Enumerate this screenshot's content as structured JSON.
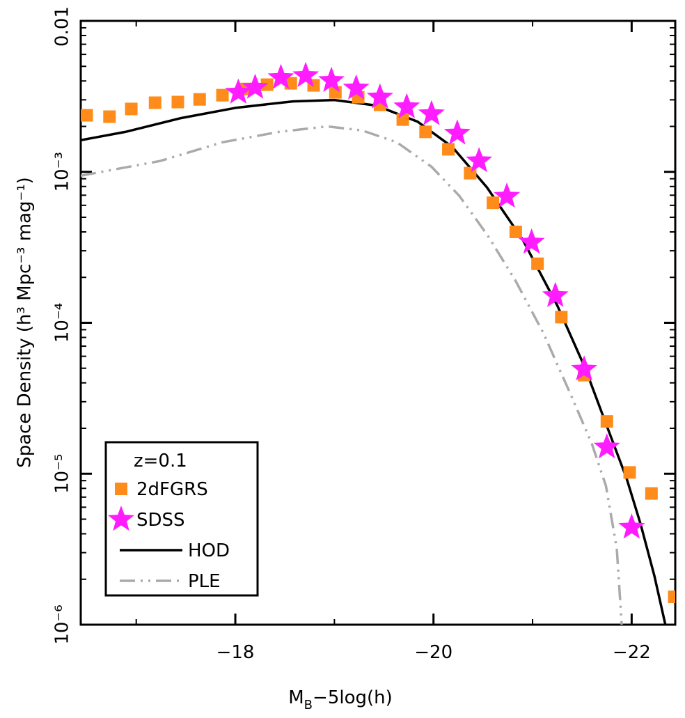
{
  "chart_data": {
    "type": "scatter-line",
    "xlabel": {
      "main": "M",
      "sub": "B",
      "rest": "−5log(h)"
    },
    "ylabel": "Space Density (h³ Mpc⁻³ mag⁻¹)",
    "xlim": [
      -16.44,
      -22.44
    ],
    "xticks": [
      {
        "value": -18,
        "label": "−18"
      },
      {
        "value": -20,
        "label": "−20"
      },
      {
        "value": -22,
        "label": "−22"
      }
    ],
    "xminor": [
      -17,
      -19,
      -21
    ],
    "ylim": [
      1e-06,
      0.01
    ],
    "log_y": true,
    "minor_ticks": true,
    "yticks": [
      {
        "value": 1e-06,
        "label": "10⁻⁶"
      },
      {
        "value": 1e-05,
        "label": "10⁻⁵"
      },
      {
        "value": 0.0001,
        "label": "10⁻⁴"
      },
      {
        "value": 0.001,
        "label": "10⁻³"
      },
      0.01
    ],
    "legend": {
      "title": "z=0.1",
      "position": "lower left"
    },
    "series": [
      {
        "name": "2dFGRS",
        "color": "#ff8c1a",
        "marker": "square",
        "x": [
          -16.5,
          -16.73,
          -16.95,
          -17.19,
          -17.42,
          -17.64,
          -17.87,
          -18.1,
          -18.32,
          -18.56,
          -18.79,
          -19.01,
          -19.24,
          -19.46,
          -19.69,
          -19.92,
          -20.15,
          -20.37,
          -20.6,
          -20.83,
          -21.05,
          -21.29,
          -21.52,
          -21.75,
          -21.98,
          -22.2,
          -22.43
        ],
        "values": [
          0.00237,
          0.00232,
          0.00261,
          0.00287,
          0.0029,
          0.00302,
          0.00322,
          0.00354,
          0.00378,
          0.00386,
          0.00374,
          0.00336,
          0.00312,
          0.00278,
          0.00222,
          0.00184,
          0.00141,
          0.00098,
          0.000624,
          0.0004,
          0.000246,
          0.000109,
          4.5e-05,
          2.22e-05,
          1.02e-05,
          7.4e-06,
          1.53e-06
        ]
      },
      {
        "name": "SDSS",
        "color": "#ff1cff",
        "marker": "star",
        "x": [
          -18.03,
          -18.2,
          -18.46,
          -18.71,
          -18.97,
          -19.22,
          -19.46,
          -19.73,
          -19.98,
          -20.24,
          -20.46,
          -20.74,
          -20.99,
          -21.23,
          -21.52,
          -21.75,
          -22.0
        ],
        "values": [
          0.00336,
          0.00362,
          0.0042,
          0.00433,
          0.00402,
          0.00358,
          0.00312,
          0.00269,
          0.00242,
          0.0018,
          0.00118,
          0.000687,
          0.000341,
          0.000151,
          4.92e-05,
          1.5e-05,
          4.41e-06
        ]
      },
      {
        "name": "HOD",
        "color": "#000000",
        "style": "solid",
        "x": [
          -16.44,
          -16.89,
          -17.45,
          -18.01,
          -18.58,
          -19.0,
          -19.42,
          -19.84,
          -20.19,
          -20.54,
          -20.9,
          -21.25,
          -21.53,
          -21.74,
          -21.95,
          -22.09,
          -22.23,
          -22.34
        ],
        "values": [
          0.00162,
          0.00184,
          0.00227,
          0.00266,
          0.00293,
          0.00299,
          0.00275,
          0.00215,
          0.00146,
          0.000788,
          0.000356,
          0.00013,
          5.02e-05,
          2.15e-05,
          9.25e-06,
          4.64e-06,
          2.1e-06,
          1e-06
        ]
      },
      {
        "name": "PLE",
        "color": "#aaaaaa",
        "style": "dash-dot-dot",
        "x": [
          -16.44,
          -17.24,
          -17.87,
          -18.44,
          -18.93,
          -19.28,
          -19.63,
          -19.98,
          -20.26,
          -20.55,
          -20.83,
          -21.11,
          -21.39,
          -21.6,
          -21.74,
          -21.85,
          -21.9
        ],
        "values": [
          0.000943,
          0.00118,
          0.00157,
          0.00184,
          0.002,
          0.00188,
          0.00157,
          0.00108,
          0.000694,
          0.000376,
          0.000189,
          8.53e-05,
          3.29e-05,
          1.57e-05,
          8.32e-06,
          3.2e-06,
          1e-06
        ]
      }
    ]
  }
}
